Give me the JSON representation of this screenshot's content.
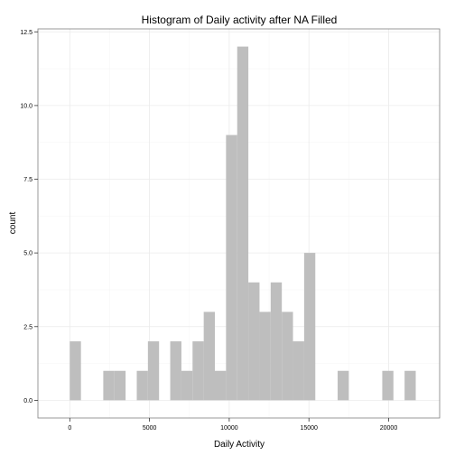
{
  "chart_data": {
    "type": "bar",
    "title": "Histogram of Daily activity after NA Filled",
    "xlabel": "Daily Activity",
    "ylabel": "count",
    "xlim": [
      -2000,
      23200
    ],
    "ylim": [
      -0.6,
      12.6
    ],
    "x_ticks": [
      0,
      5000,
      10000,
      15000,
      20000
    ],
    "x_tick_labels": [
      "0",
      "5000",
      "10000",
      "15000",
      "20000"
    ],
    "y_ticks": [
      0,
      2.5,
      5,
      7.5,
      10,
      12.5
    ],
    "y_tick_labels": [
      "0.0",
      "2.5",
      "5.0",
      "7.5",
      "10.0",
      "12.5"
    ],
    "bin_width": 700,
    "bins": [
      {
        "x0": 0,
        "x1": 700,
        "count": 2
      },
      {
        "x0": 2100,
        "x1": 2800,
        "count": 1
      },
      {
        "x0": 2800,
        "x1": 3500,
        "count": 1
      },
      {
        "x0": 4200,
        "x1": 4900,
        "count": 1
      },
      {
        "x0": 4900,
        "x1": 5600,
        "count": 2
      },
      {
        "x0": 6300,
        "x1": 7000,
        "count": 2
      },
      {
        "x0": 7000,
        "x1": 7700,
        "count": 1
      },
      {
        "x0": 7700,
        "x1": 8400,
        "count": 2
      },
      {
        "x0": 8400,
        "x1": 9100,
        "count": 3
      },
      {
        "x0": 9100,
        "x1": 9800,
        "count": 1
      },
      {
        "x0": 9800,
        "x1": 10500,
        "count": 9
      },
      {
        "x0": 10500,
        "x1": 11200,
        "count": 12
      },
      {
        "x0": 11200,
        "x1": 11900,
        "count": 4
      },
      {
        "x0": 11900,
        "x1": 12600,
        "count": 3
      },
      {
        "x0": 12600,
        "x1": 13300,
        "count": 4
      },
      {
        "x0": 13300,
        "x1": 14000,
        "count": 3
      },
      {
        "x0": 14000,
        "x1": 14700,
        "count": 2
      },
      {
        "x0": 14700,
        "x1": 15400,
        "count": 5
      },
      {
        "x0": 16800,
        "x1": 17500,
        "count": 1
      },
      {
        "x0": 19600,
        "x1": 20300,
        "count": 1
      },
      {
        "x0": 21000,
        "x1": 21700,
        "count": 1
      }
    ],
    "grid": true,
    "bar_color": "#bebebe",
    "grid_color": "#ebebeb",
    "panel_border_color": "#7f7f7f"
  }
}
